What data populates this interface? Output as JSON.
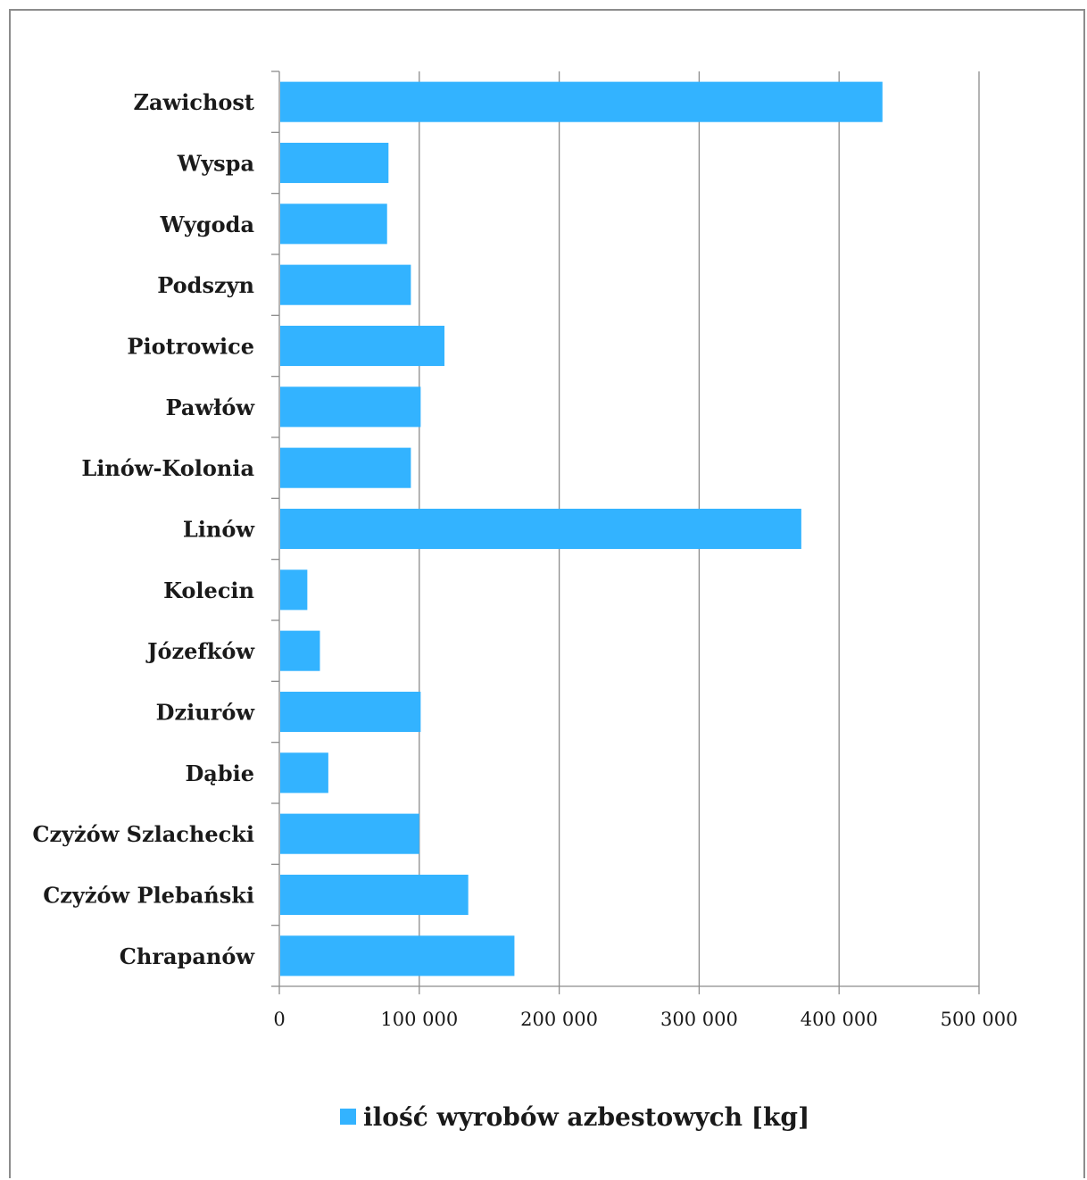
{
  "chart_data": {
    "type": "bar",
    "orientation": "horizontal",
    "categories": [
      "Zawichost",
      "Wyspa",
      "Wygoda",
      "Podszyn",
      "Piotrowice",
      "Pawłów",
      "Linów-Kolonia",
      "Linów",
      "Kolecin",
      "Józefków",
      "Dziurów",
      "Dąbie",
      "Czyżów Szlachecki",
      "Czyżów Plebański",
      "Chrapanów"
    ],
    "series": [
      {
        "name": "ilość wyrobów azbestowych [kg]",
        "color": "#33b3ff",
        "values": [
          431000,
          78000,
          77000,
          94000,
          118000,
          101000,
          94000,
          373000,
          20000,
          29000,
          101000,
          35000,
          100000,
          135000,
          168000
        ]
      }
    ],
    "x_ticks": [
      "0",
      "100 000",
      "200 000",
      "300 000",
      "400 000",
      "500 000"
    ],
    "xlim": [
      0,
      500000
    ],
    "grid": "vertical",
    "legend_position": "bottom"
  }
}
